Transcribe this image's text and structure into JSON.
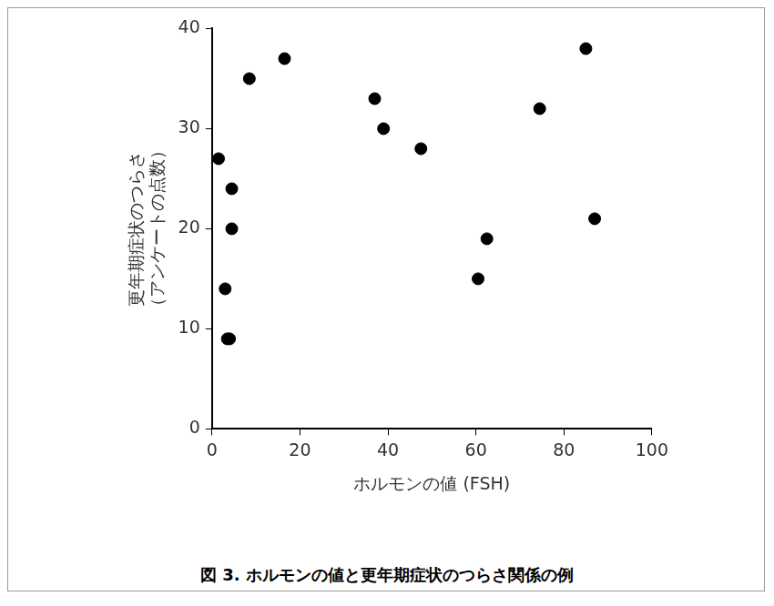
{
  "chart_data": {
    "type": "scatter",
    "title": "図 3. ホルモンの値と更年期症状のつらさ関係の例",
    "x_label": "ホルモンの値 (FSH)",
    "y_label": [
      "更年期症状のつらさ",
      "（アンケートの点数）"
    ],
    "x": [
      1.5,
      3,
      3.5,
      4,
      4.5,
      4.5,
      8.5,
      16.5,
      37,
      39,
      47.5,
      60.5,
      62.5,
      74.5,
      85,
      87
    ],
    "values": [
      27,
      14,
      9,
      9,
      24,
      20,
      35,
      37,
      33,
      30,
      28,
      15,
      19,
      32,
      38,
      21
    ],
    "color": "#000000",
    "marker": "circle",
    "xlim": [
      0,
      100
    ],
    "xticks": [
      0,
      20,
      40,
      60,
      80,
      100
    ],
    "ylim": [
      0,
      40
    ],
    "yticks": [
      0,
      10,
      20,
      30,
      40
    ],
    "grid": false
  }
}
